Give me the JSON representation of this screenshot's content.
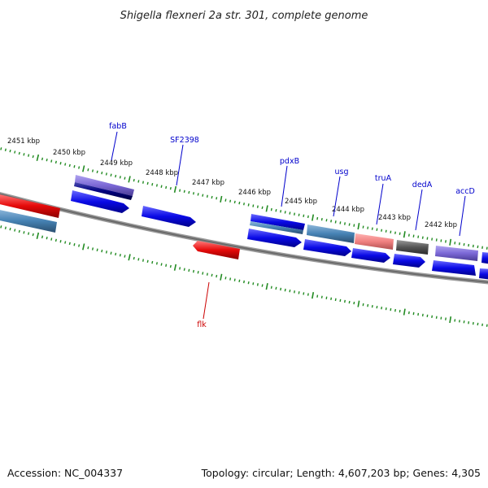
{
  "title": "Shigella flexneri 2a str. 301, complete genome",
  "footer": {
    "accession": "Accession: NC_004337",
    "summary": "Topology: circular; Length: 4,607,203 bp; Genes: 4,305"
  },
  "ruler_labels": [
    "2451 kbp",
    "2450 kbp",
    "2449 kbp",
    "2448 kbp",
    "2447 kbp",
    "2446 kbp",
    "2445 kbp",
    "2444 kbp",
    "2443 kbp",
    "2442 kbp"
  ],
  "gene_labels": {
    "fabB": "fabB",
    "sf2398": "SF2398",
    "pdxB": "pdxB",
    "usg": "usg",
    "truA": "truA",
    "dedA": "dedA",
    "accD": "accD",
    "flk": "flk"
  },
  "colors": {
    "forward_cds": "#0a0ae6",
    "reverse_cds": "#e60a0a",
    "steel_blue": "#4682b4",
    "lavender": "#7b68d6",
    "salmon": "#f08080",
    "dark_gray": "#555555",
    "navy": "#000080",
    "backbone": "#7a7a7a",
    "tick": "#228b22",
    "label_blue": "#0000cc",
    "label_red": "#cc0000"
  }
}
